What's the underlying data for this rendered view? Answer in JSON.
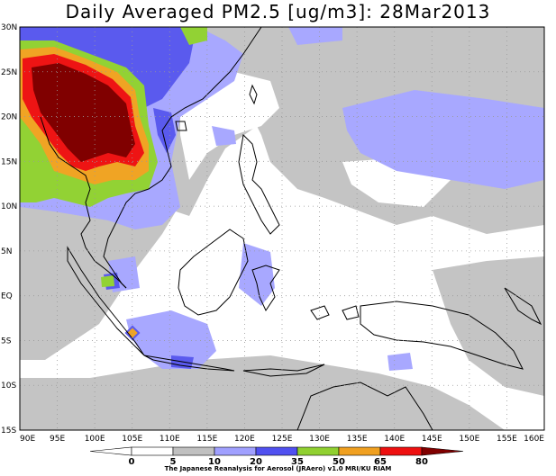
{
  "title": "Daily Averaged PM2.5 [ug/m3]: 28Mar2013",
  "credit": "The Japanese Reanalysis for Aerosol (JRAero) v1.0 MRI/KU RIAM",
  "map": {
    "lon_range": [
      90,
      160
    ],
    "lat_range": [
      -15,
      30
    ],
    "lon_ticks": [
      "90E",
      "95E",
      "100E",
      "105E",
      "110E",
      "115E",
      "120E",
      "125E",
      "130E",
      "135E",
      "140E",
      "145E",
      "150E",
      "155E",
      "160E"
    ],
    "lat_ticks": [
      "30N",
      "25N",
      "20N",
      "15N",
      "10N",
      "5N",
      "EQ",
      "5S",
      "10S",
      "15S"
    ],
    "grid": true
  },
  "colorbar": {
    "labels": [
      "0",
      "5",
      "10",
      "20",
      "35",
      "50",
      "65",
      "80"
    ],
    "colors": [
      "#ffffff",
      "#ffffff",
      "#c0c0c0",
      "#a0a0ff",
      "#5050f0",
      "#90d030",
      "#f0a020",
      "#ee1010",
      "#800000"
    ]
  }
}
